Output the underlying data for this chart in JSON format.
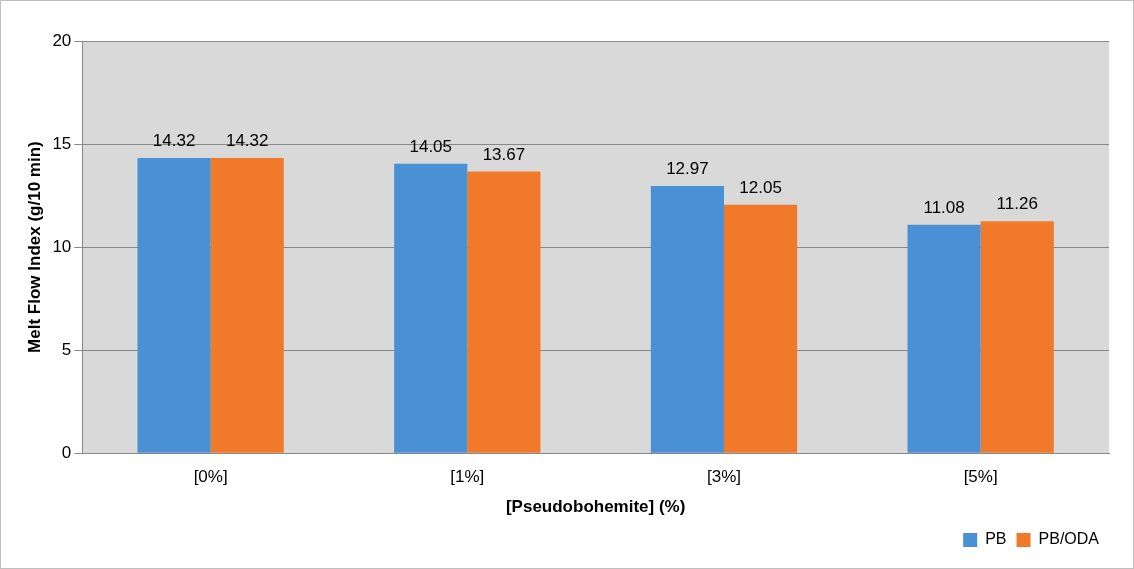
{
  "chart_data": {
    "type": "bar",
    "xlabel": "[Pseudobohemite] (%)",
    "ylabel": "Melt Flow Index (g/10 min)",
    "categories": [
      "[0%]",
      "[1%]",
      "[3%]",
      "[5%]"
    ],
    "series": [
      {
        "name": "PB",
        "color": "#4a90d4",
        "values": [
          14.32,
          14.05,
          12.97,
          11.08
        ]
      },
      {
        "name": "PB/ODA",
        "color": "#f07a2a",
        "values": [
          14.32,
          13.67,
          12.05,
          11.26
        ]
      }
    ],
    "ylim": [
      0,
      20
    ],
    "yticks": [
      0,
      5,
      10,
      15,
      20
    ],
    "grid": "y",
    "legend": "bottom right",
    "data_labels": true
  }
}
